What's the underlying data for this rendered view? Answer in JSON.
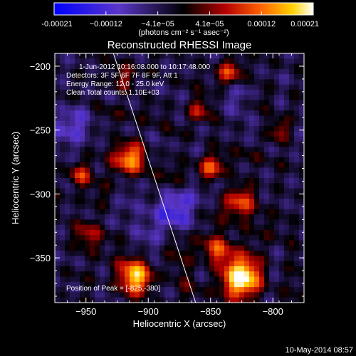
{
  "chart_data": {
    "type": "heatmap",
    "title": "Reconstructed RHESSI Image",
    "xlabel": "Heliocentric X (arcsec)",
    "ylabel": "Heliocentric Y (arcsec)",
    "xlim": [
      -975,
      -775
    ],
    "ylim": [
      -385,
      -190
    ],
    "x_ticks": [
      -950,
      -900,
      -850,
      -800
    ],
    "y_ticks": [
      -200,
      -250,
      -300,
      -350
    ],
    "x_tick_labels": [
      "−950",
      "−900",
      "−850",
      "−800"
    ],
    "y_tick_labels": [
      "−200",
      "−250",
      "−300",
      "−350"
    ],
    "colorbar": {
      "min": -0.00021,
      "max": 0.00021,
      "tick_labels": [
        "-0.00021",
        "−0.00012",
        "−4.1e−05",
        "4.1e−05",
        "0.00012",
        "0.00021"
      ],
      "unit_label": "(photons cm⁻² s⁻¹ asec⁻²)",
      "colormap": [
        "#0000ff",
        "#5a36c8",
        "#000000",
        "#b40000",
        "#ff6400",
        "#ffd200",
        "#ffffff"
      ]
    },
    "grid_cells": [
      50,
      48
    ],
    "sources": [
      {
        "x": -825,
        "y": -365,
        "amplitude": 1.0,
        "sigma": 14
      },
      {
        "x": -910,
        "y": -365,
        "amplitude": 0.85,
        "sigma": 12
      },
      {
        "x": -845,
        "y": -345,
        "amplitude": 0.55,
        "sigma": 10
      },
      {
        "x": -915,
        "y": -272,
        "amplitude": 0.75,
        "sigma": 11
      },
      {
        "x": -825,
        "y": -305,
        "amplitude": 0.55,
        "sigma": 11
      },
      {
        "x": -835,
        "y": -205,
        "amplitude": 0.5,
        "sigma": 9
      },
      {
        "x": -955,
        "y": -285,
        "amplitude": 0.45,
        "sigma": 8
      },
      {
        "x": -850,
        "y": -280,
        "amplitude": 0.5,
        "sigma": 9
      },
      {
        "x": -920,
        "y": -210,
        "amplitude": 0.35,
        "sigma": 9
      },
      {
        "x": -950,
        "y": -330,
        "amplitude": 0.4,
        "sigma": 10
      },
      {
        "x": -860,
        "y": -235,
        "amplitude": 0.4,
        "sigma": 8
      },
      {
        "x": -795,
        "y": -250,
        "amplitude": 0.35,
        "sigma": 8
      },
      {
        "x": -870,
        "y": -310,
        "amplitude": -0.35,
        "sigma": 10
      },
      {
        "x": -960,
        "y": -250,
        "amplitude": -0.4,
        "sigma": 9
      },
      {
        "x": -830,
        "y": -225,
        "amplitude": -0.3,
        "sigma": 7
      },
      {
        "x": -900,
        "y": -320,
        "amplitude": -0.3,
        "sigma": 12
      }
    ],
    "limb": {
      "x": [
        -928,
        -862
      ],
      "y": [
        -190,
        -385
      ]
    },
    "peak_marker": {
      "x": -825,
      "y": -380
    },
    "annotations": {
      "line1": "1-Jun-2012 10:16:08.000 to 10:17:48.000",
      "line2": "Detectors: 3F 5F 6F 7F 8F 9F, Att 1",
      "line3": "Energy Range: 12.0 - 25.0 keV",
      "line4": "Clean     Total counts: 1.10E+03",
      "peak": "Position of Peak = [-825,-380]"
    },
    "footer": "10-May-2014 08:57"
  }
}
